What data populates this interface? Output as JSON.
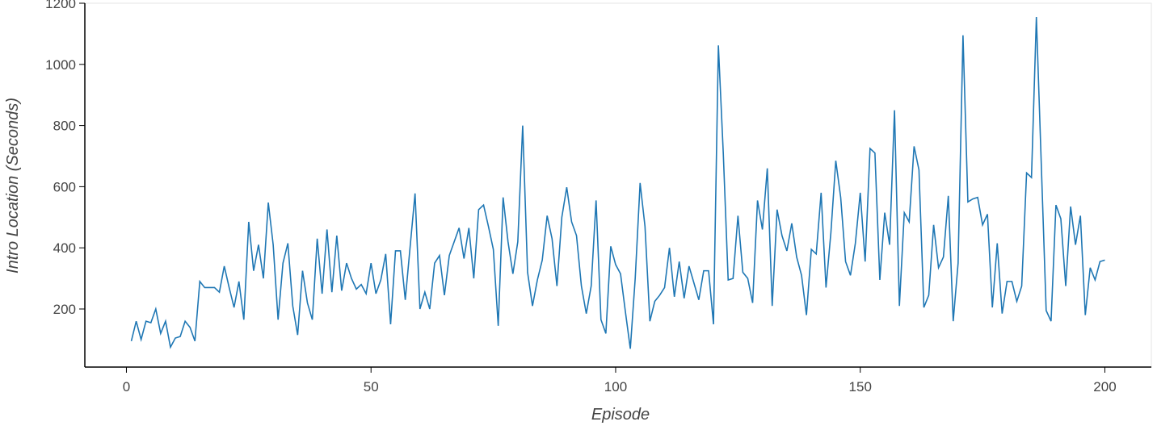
{
  "chart_data": {
    "type": "line",
    "x_label": "Episode",
    "y_label": "Intro Location (Seconds)",
    "x": [
      1,
      2,
      3,
      4,
      5,
      6,
      7,
      8,
      9,
      10,
      11,
      12,
      13,
      14,
      15,
      16,
      17,
      18,
      19,
      20,
      21,
      22,
      23,
      24,
      25,
      26,
      27,
      28,
      29,
      30,
      31,
      32,
      33,
      34,
      35,
      36,
      37,
      38,
      39,
      40,
      41,
      42,
      43,
      44,
      45,
      46,
      47,
      48,
      49,
      50,
      51,
      52,
      53,
      54,
      55,
      56,
      57,
      58,
      59,
      60,
      61,
      62,
      63,
      64,
      65,
      66,
      67,
      68,
      69,
      70,
      71,
      72,
      73,
      74,
      75,
      76,
      77,
      78,
      79,
      80,
      81,
      82,
      83,
      84,
      85,
      86,
      87,
      88,
      89,
      90,
      91,
      92,
      93,
      94,
      95,
      96,
      97,
      98,
      99,
      100,
      101,
      102,
      103,
      104,
      105,
      106,
      107,
      108,
      109,
      110,
      111,
      112,
      113,
      114,
      115,
      116,
      117,
      118,
      119,
      120,
      121,
      122,
      123,
      124,
      125,
      126,
      127,
      128,
      129,
      130,
      131,
      132,
      133,
      134,
      135,
      136,
      137,
      138,
      139,
      140,
      141,
      142,
      143,
      144,
      145,
      146,
      147,
      148,
      149,
      150,
      151,
      152,
      153,
      154,
      155,
      156,
      157,
      158,
      159,
      160,
      161,
      162,
      163,
      164,
      165,
      166,
      167,
      168,
      169,
      170,
      171,
      172,
      173,
      174,
      175,
      176,
      177,
      178,
      179,
      180,
      181,
      182,
      183,
      184,
      185,
      186,
      187,
      188,
      189,
      190,
      191,
      192,
      193,
      194,
      195,
      196,
      197,
      198,
      199,
      200
    ],
    "series": [
      {
        "color": "#1f77b4",
        "values": [
          95,
          160,
          100,
          160,
          155,
          200,
          120,
          160,
          75,
          105,
          110,
          160,
          140,
          95,
          290,
          270,
          270,
          270,
          255,
          340,
          270,
          205,
          290,
          165,
          485,
          325,
          410,
          300,
          548,
          410,
          165,
          350,
          415,
          210,
          115,
          325,
          220,
          165,
          430,
          250,
          460,
          255,
          440,
          260,
          350,
          300,
          265,
          280,
          250,
          350,
          250,
          295,
          380,
          150,
          390,
          390,
          230,
          405,
          578,
          200,
          255,
          200,
          350,
          375,
          245,
          375,
          420,
          465,
          365,
          465,
          300,
          525,
          540,
          470,
          395,
          145,
          565,
          420,
          315,
          420,
          800,
          320,
          210,
          295,
          360,
          505,
          430,
          275,
          500,
          598,
          485,
          440,
          275,
          185,
          275,
          555,
          165,
          120,
          405,
          345,
          315,
          190,
          70,
          300,
          612,
          470,
          160,
          225,
          245,
          270,
          400,
          240,
          355,
          235,
          340,
          285,
          230,
          325,
          325,
          150,
          1062,
          710,
          295,
          300,
          505,
          320,
          300,
          220,
          555,
          460,
          660,
          210,
          525,
          440,
          390,
          480,
          370,
          310,
          180,
          395,
          380,
          580,
          270,
          450,
          685,
          565,
          355,
          310,
          415,
          580,
          355,
          725,
          710,
          295,
          515,
          410,
          850,
          210,
          515,
          485,
          732,
          655,
          205,
          245,
          475,
          335,
          370,
          570,
          160,
          350,
          1095,
          550,
          560,
          565,
          475,
          510,
          205,
          415,
          185,
          290,
          290,
          225,
          275,
          645,
          630,
          1155,
          675,
          195,
          160,
          540,
          495,
          275,
          535,
          410,
          505,
          180,
          335,
          295,
          355,
          360
        ]
      }
    ],
    "xlim": [
      -8.5,
      209.5
    ],
    "ylim": [
      10,
      1200
    ],
    "xticks": [
      0,
      50,
      100,
      150,
      200
    ],
    "yticks": [
      200,
      400,
      600,
      800,
      1000,
      1200
    ]
  }
}
